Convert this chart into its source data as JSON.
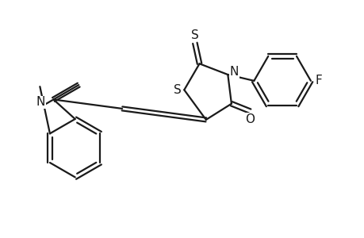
{
  "background": "#ffffff",
  "line_color": "#1a1a1a",
  "line_width": 1.6,
  "dbo": 0.06,
  "font_size": 11,
  "fig_width": 4.6,
  "fig_height": 3.0,
  "dpi": 100,
  "xlim": [
    0,
    10
  ],
  "ylim": [
    0,
    6.5
  ]
}
